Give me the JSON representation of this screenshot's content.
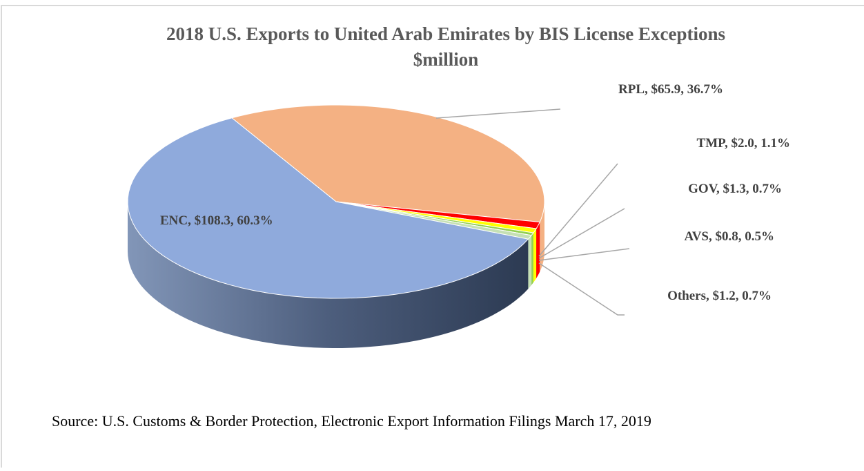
{
  "chart_data": {
    "type": "pie",
    "title": "2018 U.S. Exports to United Arab Emirates by BIS License Exceptions",
    "subtitle": "$million",
    "categories": [
      "RPL",
      "TMP",
      "GOV",
      "AVS",
      "Others",
      "ENC"
    ],
    "values": [
      65.9,
      2.0,
      1.3,
      0.8,
      1.2,
      108.3
    ],
    "value_labels": [
      "$65.9",
      "$2.0",
      "$1.3",
      "$0.8",
      "$1.2",
      "$108.3"
    ],
    "percents": [
      36.7,
      1.1,
      0.7,
      0.5,
      0.7,
      60.3
    ],
    "percent_labels": [
      "36.7%",
      "1.1%",
      "0.7%",
      "0.5%",
      "0.7%",
      "60.3%"
    ],
    "colors": [
      "#f4b183",
      "#ff0000",
      "#ffff00",
      "#92d050",
      "#c5e0b4",
      "#8faadc"
    ],
    "source": "Source: U.S. Customs & Border Protection, Electronic Export Information Filings March 17, 2019"
  }
}
